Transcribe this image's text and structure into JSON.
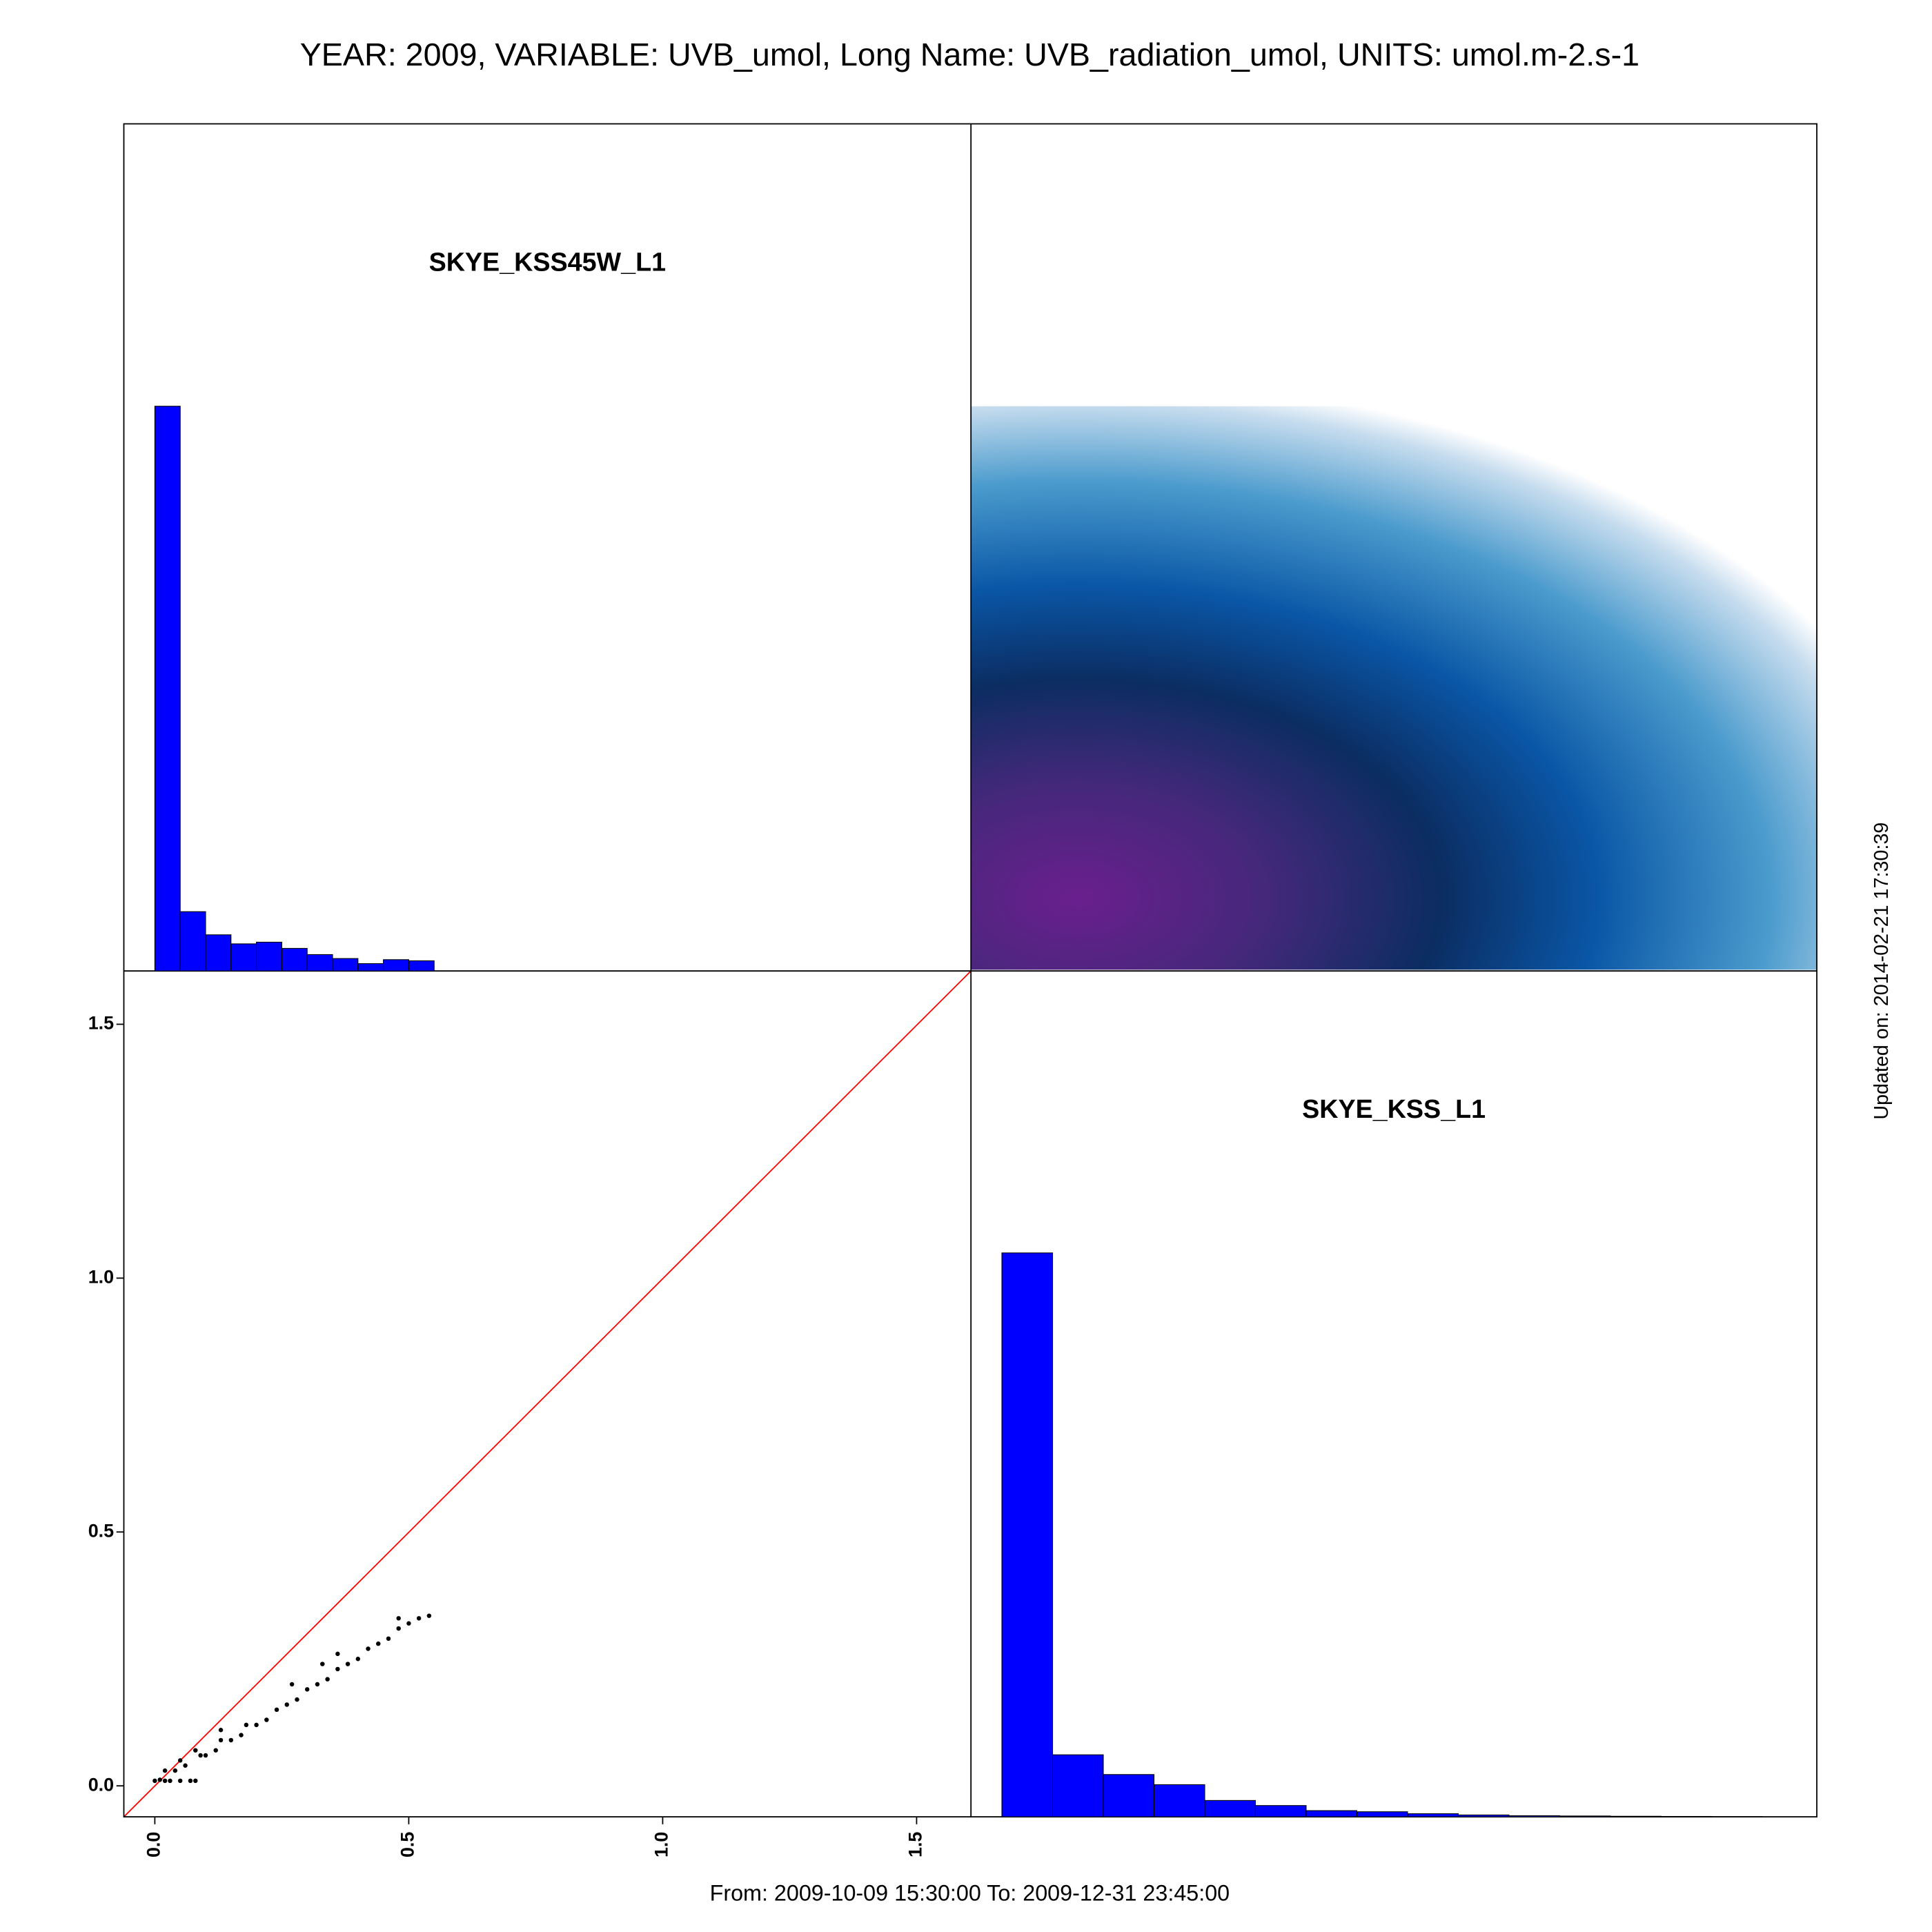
{
  "title": "YEAR: 2009, VARIABLE: UVB_umol, Long Name: UVB_radiation_umol, UNITS: umol.m-2.s-1",
  "footer": "From: 2009-10-09 15:30:00 To: 2009-12-31 23:45:00",
  "updated": "Updated on: 2014-02-21 17:30:39",
  "chart_data": [
    {
      "type": "histogram",
      "label": "SKYE_KSS45W_L1",
      "color": "#0000ff",
      "bins": [
        0,
        0.05,
        0.1,
        0.15,
        0.2,
        0.25,
        0.3,
        0.35,
        0.4,
        0.45,
        0.5,
        0.55
      ],
      "values": [
        1,
        0.105,
        0.064,
        0.048,
        0.051,
        0.04,
        0.029,
        0.022,
        0.013,
        0.02,
        0.018
      ],
      "xlim": [
        -0.061,
        1.607
      ],
      "ylim": [
        0,
        1.5
      ]
    },
    {
      "type": "scatter",
      "color": "#000000",
      "x": [
        0,
        0.01,
        0.02,
        0.03,
        0.05,
        0.07,
        0.08,
        0.02,
        0.04,
        0.05,
        0.06,
        0.08,
        0.09,
        0.1,
        0.12,
        0.13,
        0.15,
        0.17,
        0.18,
        0.2,
        0.22,
        0.24,
        0.26,
        0.28,
        0.3,
        0.32,
        0.34,
        0.36,
        0.38,
        0.4,
        0.42,
        0.44,
        0.46,
        0.48,
        0.5,
        0.52,
        0.54,
        0.33,
        0.36,
        0.48,
        0.13,
        0.27
      ],
      "y": [
        0.01,
        0.012,
        0.01,
        0.01,
        0.01,
        0.01,
        0.01,
        0.03,
        0.03,
        0.05,
        0.04,
        0.07,
        0.06,
        0.06,
        0.07,
        0.09,
        0.09,
        0.1,
        0.12,
        0.12,
        0.13,
        0.15,
        0.16,
        0.17,
        0.19,
        0.2,
        0.21,
        0.23,
        0.24,
        0.25,
        0.27,
        0.28,
        0.29,
        0.31,
        0.32,
        0.33,
        0.335,
        0.24,
        0.26,
        0.33,
        0.11,
        0.2
      ],
      "xlim": [
        -0.061,
        1.607
      ],
      "ylim": [
        -0.061,
        1.605
      ],
      "xticks": [
        {
          "value": 0,
          "label": "0.0"
        },
        0.5,
        {
          "value": 1,
          "label": "1.0"
        },
        1.5
      ],
      "yticks": [
        {
          "value": 0,
          "label": "0.0"
        },
        0.5,
        {
          "value": 1,
          "label": "1.0"
        },
        1.5
      ]
    },
    {
      "type": "histogram",
      "label": "SKYE_KSS_L1",
      "color": "#0000ff",
      "bins": [
        0,
        0.1,
        0.2,
        0.3,
        0.4,
        0.5,
        0.6,
        0.7,
        0.8,
        0.9,
        1.0,
        1.1,
        1.2,
        1.3,
        1.4,
        1.5
      ],
      "values": [
        1,
        0.11,
        0.075,
        0.057,
        0.029,
        0.02,
        0.011,
        0.009,
        0.0055,
        0.0033,
        0.002,
        0.0015,
        0.001,
        0.0007,
        0.0004
      ],
      "xlim": [
        -0.061,
        1.607
      ],
      "ylim": [
        0,
        1.5
      ]
    }
  ]
}
